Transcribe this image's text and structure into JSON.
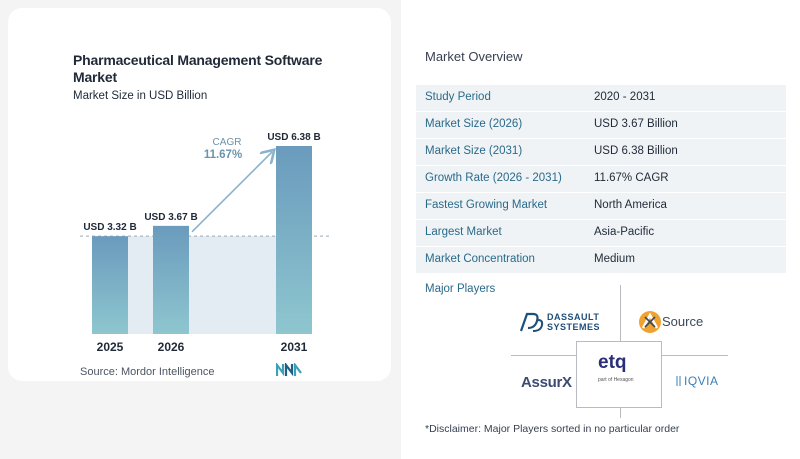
{
  "chart": {
    "title": "Pharmaceutical Management Software Market",
    "subtitle": "Market Size in USD Billion",
    "source": "Source:  Mordor Intelligence",
    "cagr_label": "CAGR",
    "cagr_value": "11.67%"
  },
  "chart_data": {
    "type": "bar",
    "title": "Pharmaceutical Management Software Market",
    "subtitle": "Market Size in USD Billion",
    "categories": [
      "2025",
      "2026",
      "2031"
    ],
    "values": [
      3.32,
      3.67,
      6.38
    ],
    "data_labels": [
      "USD 3.32 B",
      "USD 3.67 B",
      "USD 6.38 B"
    ],
    "annotation": {
      "label": "CAGR",
      "value": "11.67%"
    },
    "xlabel": "",
    "ylabel": "",
    "ylim": [
      0,
      6.38
    ],
    "grid": false,
    "colors": {
      "bar_top": "#6a9bbd",
      "bar_bottom": "#8ec6cf",
      "shade": "#e3ecf2",
      "arrow": "#8ab2cc"
    }
  },
  "overview": {
    "title": "Market Overview",
    "rows": [
      {
        "label": "Study Period",
        "value": "2020 - 2031"
      },
      {
        "label": "Market Size (2026)",
        "value": "USD 3.67 Billion"
      },
      {
        "label": "Market Size (2031)",
        "value": "USD 6.38 Billion"
      },
      {
        "label": "Growth Rate (2026 - 2031)",
        "value": "11.67% CAGR"
      },
      {
        "label": "Fastest Growing Market",
        "value": "North America"
      },
      {
        "label": "Largest Market",
        "value": "Asia-Pacific"
      },
      {
        "label": "Market Concentration",
        "value": "Medium"
      }
    ]
  },
  "players": {
    "title": "Major Players",
    "logos": [
      {
        "name": "DASSAULT SYSTEMES",
        "line1": "DASSAULT",
        "line2": "SYSTEMES"
      },
      {
        "name": "AxSource",
        "text": "Source"
      },
      {
        "name": "AssurX",
        "text": "AssurX"
      },
      {
        "name": "etq",
        "text": "etq",
        "sub": "part of Hexagon"
      },
      {
        "name": "IQVIA",
        "text": "IQVIA"
      }
    ]
  },
  "disclaimer": "*Disclaimer: Major Players sorted in no particular order"
}
